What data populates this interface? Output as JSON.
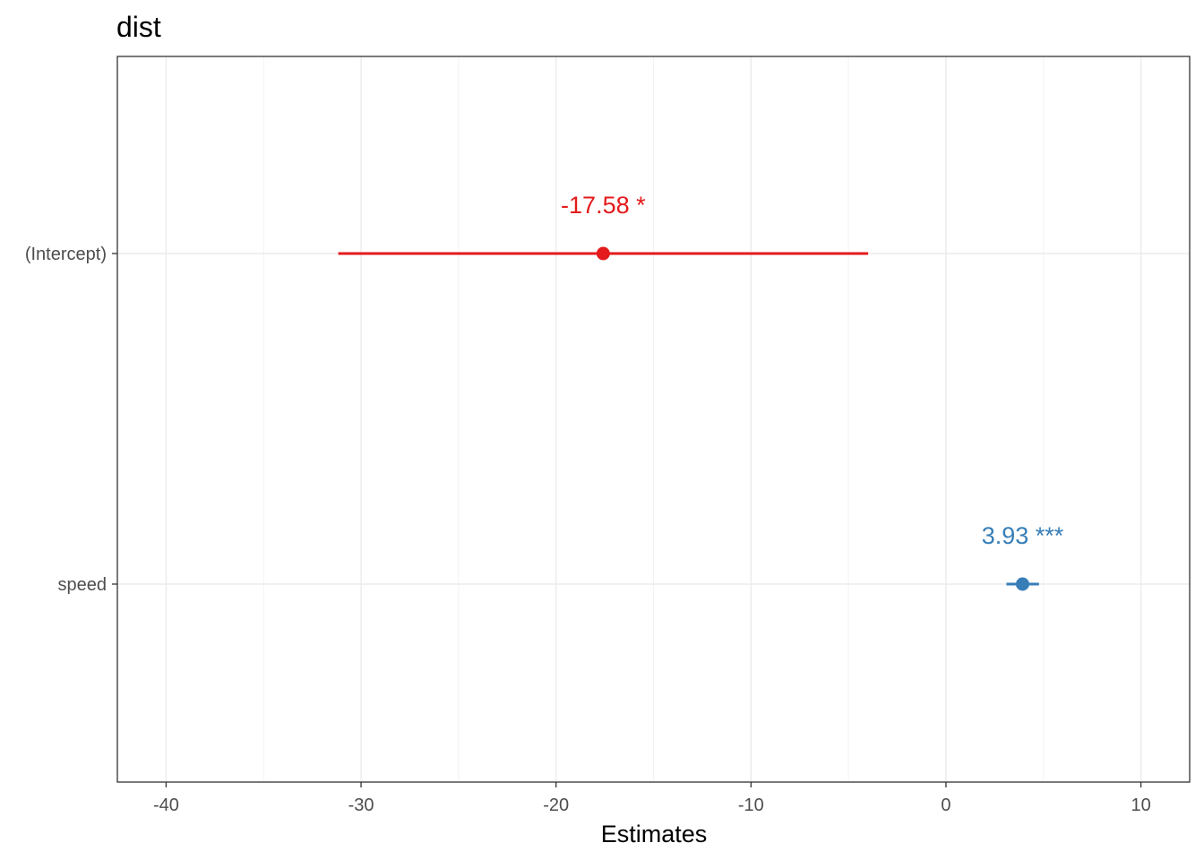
{
  "chart_data": {
    "type": "forest",
    "title": "dist",
    "xlabel": "Estimates",
    "ylabel": "",
    "xlim": [
      -42.5,
      12.5
    ],
    "x_ticks": [
      -40,
      -30,
      -20,
      -10,
      0,
      10
    ],
    "x_tick_labels": [
      "-40",
      "-30",
      "-20",
      "-10",
      "0",
      "10"
    ],
    "grid": true,
    "legend": "none",
    "terms": [
      {
        "label": "(Intercept)",
        "estimate": -17.58,
        "ci_low": -31.17,
        "ci_high": -3.99,
        "annotation": "-17.58 *",
        "color": "#e41a1c"
      },
      {
        "label": "speed",
        "estimate": 3.93,
        "ci_low": 3.1,
        "ci_high": 4.77,
        "annotation": "3.93 ***",
        "color": "#377eb8"
      }
    ]
  }
}
